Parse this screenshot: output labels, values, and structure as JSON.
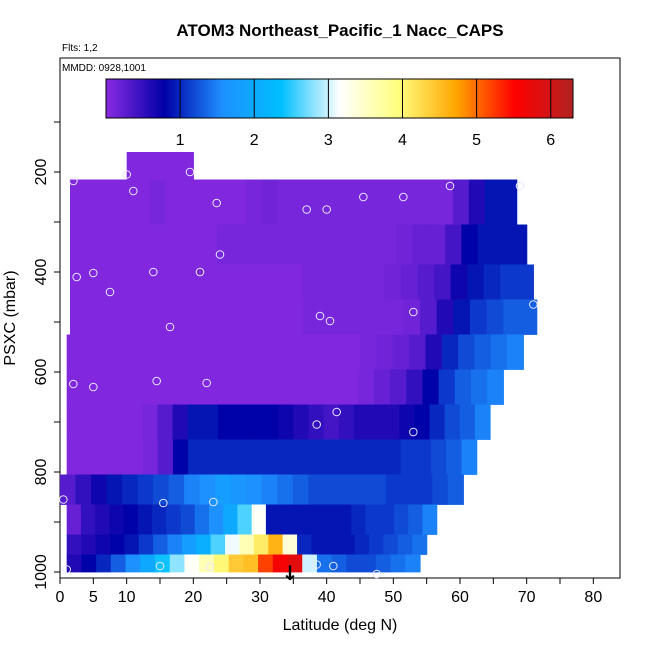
{
  "chart_data": {
    "type": "heatmap",
    "title": "ATOM3 Northeast_Pacific_1 Nacc_CAPS",
    "subtitle_flights": "Flts: 1,2",
    "subtitle_dates": "MMDD: 0928,1001",
    "xlabel": "Latitude (deg N)",
    "ylabel": "PSXC (mbar)",
    "xlim": [
      0,
      84
    ],
    "ylim": [
      1000,
      0
    ],
    "x_ticks": [
      0,
      5,
      10,
      20,
      30,
      40,
      50,
      60,
      70,
      80
    ],
    "y_ticks": [
      200,
      400,
      600,
      800,
      1000
    ],
    "colorbar": {
      "min": 0,
      "max": 6.3,
      "ticks": [
        1,
        2,
        3,
        4,
        5,
        6
      ],
      "colors": [
        "#8a2be2",
        "#0000a8",
        "#1e90ff",
        "#00bfff",
        "#ffffff",
        "#ffff80",
        "#ffa500",
        "#ff0000",
        "#b22222"
      ]
    },
    "grid": false,
    "legend_position": "top",
    "rows": [
      {
        "p0": 160,
        "p1": 215,
        "lat0": 10,
        "lat1": 20,
        "cells": [
          0.05
        ]
      },
      {
        "p0": 215,
        "p1": 305,
        "lat0": 1.5,
        "lat1": 68.5,
        "cells": [
          0.05,
          0.05,
          0.05,
          0.05,
          0.05,
          0.1,
          0.05,
          0.05,
          0.05,
          0.05,
          0.05,
          0.1,
          0.15,
          0.1,
          0.1,
          0.1,
          0.1,
          0.1,
          0.1,
          0.1,
          0.1,
          0.1,
          0.1,
          0.1,
          0.3,
          0.6,
          0.9,
          0.9
        ]
      },
      {
        "p0": 305,
        "p1": 385,
        "lat0": 1.5,
        "lat1": 70,
        "cells": [
          0.05,
          0.05,
          0.05,
          0.05,
          0.05,
          0.05,
          0.05,
          0.05,
          0.05,
          0.1,
          0.1,
          0.1,
          0.1,
          0.1,
          0.1,
          0.1,
          0.1,
          0.1,
          0.1,
          0.1,
          0.15,
          0.2,
          0.2,
          0.4,
          0.8,
          0.9,
          0.9,
          0.9
        ]
      },
      {
        "p0": 385,
        "p1": 455,
        "lat0": 1.5,
        "lat1": 71,
        "cells": [
          0.05,
          0.05,
          0.05,
          0.05,
          0.05,
          0.05,
          0.05,
          0.05,
          0.05,
          0.05,
          0.05,
          0.05,
          0.05,
          0.05,
          0.1,
          0.1,
          0.1,
          0.1,
          0.1,
          0.15,
          0.2,
          0.3,
          0.4,
          0.7,
          0.9,
          1.0,
          1.1,
          1.1
        ]
      },
      {
        "p0": 455,
        "p1": 525,
        "lat0": 1.5,
        "lat1": 71.5,
        "cells": [
          0.05,
          0.05,
          0.05,
          0.05,
          0.05,
          0.05,
          0.05,
          0.05,
          0.05,
          0.05,
          0.05,
          0.05,
          0.05,
          0.05,
          0.1,
          0.1,
          0.1,
          0.1,
          0.1,
          0.1,
          0.15,
          0.3,
          0.6,
          0.9,
          1.1,
          1.2,
          1.3,
          1.3
        ]
      },
      {
        "p0": 525,
        "p1": 595,
        "lat0": 1.0,
        "lat1": 69.5,
        "cells": [
          0.05,
          0.05,
          0.05,
          0.05,
          0.05,
          0.05,
          0.05,
          0.05,
          0.05,
          0.05,
          0.05,
          0.05,
          0.05,
          0.05,
          0.05,
          0.05,
          0.05,
          0.05,
          0.1,
          0.15,
          0.2,
          0.3,
          0.6,
          1.0,
          1.2,
          1.3,
          1.4,
          1.5
        ]
      },
      {
        "p0": 595,
        "p1": 665,
        "lat0": 1.0,
        "lat1": 66.5,
        "cells": [
          0.05,
          0.05,
          0.05,
          0.05,
          0.05,
          0.05,
          0.05,
          0.05,
          0.05,
          0.05,
          0.05,
          0.05,
          0.05,
          0.05,
          0.05,
          0.05,
          0.05,
          0.05,
          0.1,
          0.2,
          0.3,
          0.5,
          0.8,
          1.1,
          1.3,
          1.4,
          1.5
        ]
      },
      {
        "p0": 665,
        "p1": 735,
        "lat0": 1.0,
        "lat1": 64.5,
        "cells": [
          0.05,
          0.05,
          0.05,
          0.05,
          0.05,
          0.1,
          0.3,
          0.6,
          0.9,
          0.9,
          0.8,
          0.8,
          0.8,
          0.8,
          0.7,
          0.6,
          0.5,
          0.4,
          0.5,
          0.6,
          0.6,
          0.6,
          0.7,
          0.8,
          1.0,
          1.2,
          1.3,
          1.5
        ]
      },
      {
        "p0": 735,
        "p1": 805,
        "lat0": 1.0,
        "lat1": 62.5,
        "cells": [
          0.05,
          0.05,
          0.05,
          0.05,
          0.05,
          0.1,
          0.3,
          0.8,
          1.0,
          1.0,
          1.0,
          1.0,
          1.0,
          1.0,
          1.0,
          1.0,
          1.0,
          1.0,
          1.0,
          1.0,
          1.0,
          1.0,
          1.1,
          1.1,
          1.2,
          1.3,
          1.5
        ]
      },
      {
        "p0": 805,
        "p1": 865,
        "lat0": 0,
        "lat1": 60.5,
        "cells": [
          0.3,
          0.5,
          0.7,
          0.9,
          1.0,
          1.1,
          1.2,
          1.3,
          1.5,
          1.6,
          1.8,
          1.7,
          1.6,
          1.5,
          1.4,
          1.3,
          1.2,
          1.2,
          1.2,
          1.2,
          1.2,
          1.1,
          1.1,
          1.1,
          1.2,
          1.3
        ]
      },
      {
        "p0": 865,
        "p1": 925,
        "lat0": 1.0,
        "lat1": 56.5,
        "cells": [
          0.2,
          0.5,
          0.6,
          0.7,
          0.8,
          0.9,
          1.0,
          1.1,
          1.2,
          1.4,
          1.6,
          2.0,
          2.6,
          3.2,
          0.9,
          0.9,
          0.9,
          0.9,
          0.9,
          0.9,
          1.0,
          1.1,
          1.1,
          1.2,
          1.3,
          1.5
        ]
      },
      {
        "p0": 925,
        "p1": 965,
        "lat0": 1.0,
        "lat1": 55.0,
        "cells": [
          0.5,
          0.6,
          0.7,
          0.8,
          0.9,
          1.1,
          1.3,
          1.5,
          1.8,
          2.1,
          2.6,
          3.1,
          3.6,
          4.1,
          4.6,
          3.4,
          1.0,
          0.9,
          0.9,
          0.9,
          1.0,
          1.1,
          1.2,
          1.3,
          1.4
        ]
      },
      {
        "p0": 965,
        "p1": 1000,
        "lat0": 1.0,
        "lat1": 54.0,
        "cells": [
          0.6,
          0.8,
          1.0,
          1.3,
          1.6,
          2.0,
          2.4,
          2.8,
          3.2,
          3.6,
          4.0,
          4.4,
          4.5,
          5.2,
          5.6,
          5.8,
          3.0,
          1.4,
          1.3,
          1.2,
          1.2,
          1.3,
          1.4,
          1.5
        ]
      }
    ],
    "sample_points": [
      [
        2,
        218
      ],
      [
        10,
        205
      ],
      [
        11,
        238
      ],
      [
        19.5,
        200
      ],
      [
        23.5,
        262
      ],
      [
        37,
        275
      ],
      [
        40,
        275
      ],
      [
        45.5,
        250
      ],
      [
        51.5,
        250
      ],
      [
        58.5,
        228
      ],
      [
        69,
        228
      ],
      [
        24,
        365
      ],
      [
        2.5,
        410
      ],
      [
        5,
        402
      ],
      [
        7.5,
        440
      ],
      [
        14,
        400
      ],
      [
        21,
        400
      ],
      [
        16.5,
        510
      ],
      [
        39,
        488
      ],
      [
        40.5,
        498
      ],
      [
        53,
        480
      ],
      [
        71,
        465
      ],
      [
        2,
        624
      ],
      [
        5,
        630
      ],
      [
        14.5,
        618
      ],
      [
        22,
        622
      ],
      [
        38.5,
        705
      ],
      [
        41.5,
        680
      ],
      [
        53,
        720
      ],
      [
        0.5,
        855
      ],
      [
        15.5,
        862
      ],
      [
        23,
        860
      ],
      [
        1,
        995
      ],
      [
        15,
        988
      ],
      [
        22.5,
        990
      ],
      [
        38.5,
        985
      ],
      [
        41,
        988
      ],
      [
        47.5,
        1005
      ]
    ],
    "marker": {
      "lat": 34.5,
      "label": "↓"
    }
  }
}
